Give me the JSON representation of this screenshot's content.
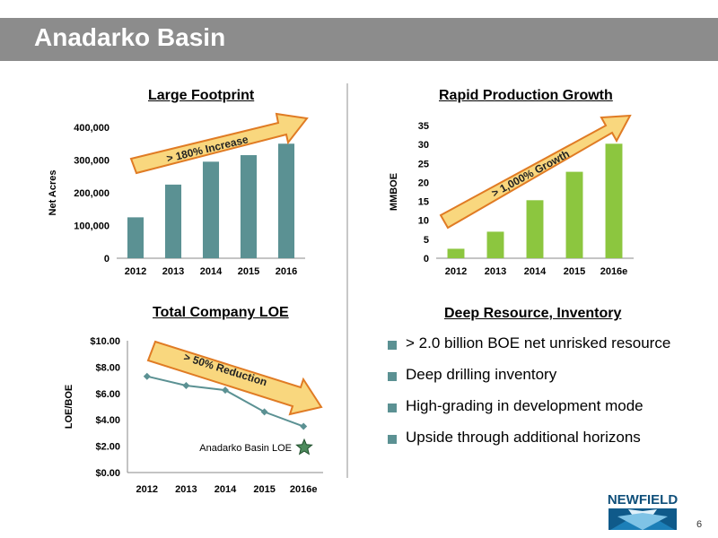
{
  "header": {
    "title": "Anadarko Basin"
  },
  "colors": {
    "header_bg": "#8c8c8c",
    "teal": "#5b9193",
    "green": "#8cc63f",
    "arrow_fill": "#f9d77e",
    "arrow_stroke": "#e07b24"
  },
  "footprint": {
    "title": "Large Footprint",
    "arrow_label": "> 180% Increase",
    "chart_data": {
      "type": "bar",
      "categories": [
        "2012",
        "2013",
        "2014",
        "2015",
        "2016"
      ],
      "values": [
        125000,
        225000,
        295000,
        315000,
        350000
      ],
      "ylabel": "Net Acres",
      "ylim": [
        0,
        400000
      ],
      "ytick_labels": [
        "0",
        "100,000",
        "200,000",
        "300,000",
        "400,000"
      ],
      "grid": false
    }
  },
  "production": {
    "title": "Rapid Production Growth",
    "arrow_label": "> 1,000% Growth",
    "chart_data": {
      "type": "bar",
      "categories": [
        "2012",
        "2013",
        "2014",
        "2015",
        "2016e"
      ],
      "values": [
        2.5,
        7,
        15.3,
        22.8,
        30.2
      ],
      "ylabel": "MMBOE",
      "ylim": [
        0,
        35
      ],
      "ytick_labels": [
        "0",
        "5",
        "10",
        "15",
        "20",
        "25",
        "30",
        "35"
      ],
      "grid": false
    }
  },
  "loe": {
    "title": "Total Company LOE",
    "arrow_label": "> 50% Reduction",
    "chart_data": {
      "type": "line",
      "categories": [
        "2012",
        "2013",
        "2014",
        "2015",
        "2016e"
      ],
      "series": [
        {
          "name": "",
          "values": [
            7.3,
            6.6,
            6.25,
            4.6,
            3.5
          ]
        }
      ],
      "ylabel": "LOE/BOE",
      "ylim": [
        0,
        10
      ],
      "ytick_labels": [
        "$0.00",
        "$2.00",
        "$4.00",
        "$6.00",
        "$8.00",
        "$10.00"
      ],
      "annotation": {
        "text": "Anadarko Basin LOE",
        "value": 1.9
      },
      "grid": false
    }
  },
  "resource": {
    "title": "Deep Resource, Inventory",
    "bullets": [
      "> 2.0 billion BOE net unrisked resource",
      "Deep drilling inventory",
      "High-grading in development mode",
      "Upside through additional horizons"
    ]
  },
  "logo": {
    "text": "NEWFIELD"
  },
  "page_number": "6"
}
